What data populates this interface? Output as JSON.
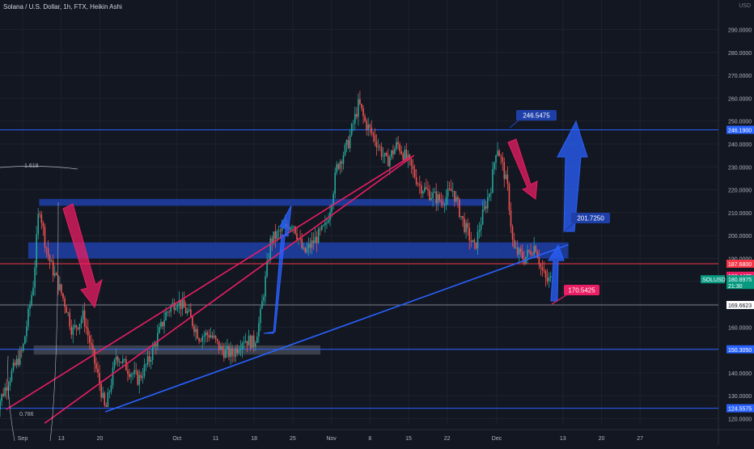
{
  "header": {
    "title": "Solana / U.S. Dollar, 1h, FTX, Heikin Ashi",
    "currency": "USD"
  },
  "colors": {
    "background": "#131722",
    "axis_text": "#b2b5be",
    "up_candle": "#26a69a",
    "down_candle": "#ef5350",
    "resistance_line": "#2962ff",
    "red_line": "#f23645",
    "red_trend": "#e91e63",
    "blue_zone": "#1e3fa8",
    "gray_zone": "#5d606b",
    "current_price_tag": "#089981",
    "red_price_tag": "#f23645"
  },
  "chart_data": {
    "type": "candlestick",
    "title": "Solana / U.S. Dollar, 1h, FTX, Heikin Ashi",
    "xlabel": "",
    "ylabel": "",
    "ylim": [
      118,
      301
    ],
    "y_ticks": [
      120,
      130,
      140,
      150,
      160,
      170,
      180,
      190,
      200,
      210,
      220,
      230,
      240,
      250,
      260,
      270,
      280,
      290
    ],
    "y_tick_labels": [
      "120.0000",
      "130.0000",
      "140.0000",
      "150.0000",
      "160.0000",
      "170.0000",
      "180.0000",
      "190.0000",
      "200.0000",
      "210.0000",
      "220.0000",
      "230.0000",
      "240.0000",
      "250.0000",
      "260.0000",
      "270.0000",
      "280.0000",
      "290.0000"
    ],
    "x_tick_labels": [
      "Sep",
      "13",
      "20",
      "Oct",
      "11",
      "18",
      "25",
      "Nov",
      "8",
      "15",
      "22",
      "Dec",
      "13",
      "20",
      "27"
    ],
    "x_tick_dates": [
      "2021-09-06",
      "2021-09-13",
      "2021-09-20",
      "2021-10-04",
      "2021-10-11",
      "2021-10-18",
      "2021-10-25",
      "2021-11-01",
      "2021-11-08",
      "2021-11-15",
      "2021-11-22",
      "2021-12-01",
      "2021-12-13",
      "2021-12-20",
      "2021-12-27"
    ],
    "price_path": [
      [
        "2021-09-01",
        123
      ],
      [
        "2021-09-04",
        140
      ],
      [
        "2021-09-06",
        150
      ],
      [
        "2021-09-08",
        180
      ],
      [
        "2021-09-09",
        214
      ],
      [
        "2021-09-10",
        198
      ],
      [
        "2021-09-11",
        188
      ],
      [
        "2021-09-13",
        175
      ],
      [
        "2021-09-14",
        168
      ],
      [
        "2021-09-15",
        158
      ],
      [
        "2021-09-17",
        165
      ],
      [
        "2021-09-19",
        145
      ],
      [
        "2021-09-20",
        135
      ],
      [
        "2021-09-21",
        123
      ],
      [
        "2021-09-23",
        148
      ],
      [
        "2021-09-25",
        142
      ],
      [
        "2021-09-27",
        137
      ],
      [
        "2021-09-29",
        146
      ],
      [
        "2021-10-02",
        166
      ],
      [
        "2021-10-04",
        172
      ],
      [
        "2021-10-06",
        166
      ],
      [
        "2021-10-08",
        156
      ],
      [
        "2021-10-10",
        157
      ],
      [
        "2021-10-12",
        150
      ],
      [
        "2021-10-14",
        148
      ],
      [
        "2021-10-16",
        155
      ],
      [
        "2021-10-18",
        153
      ],
      [
        "2021-10-19",
        163
      ],
      [
        "2021-10-20",
        180
      ],
      [
        "2021-10-21",
        198
      ],
      [
        "2021-10-23",
        202
      ],
      [
        "2021-10-25",
        206
      ],
      [
        "2021-10-27",
        192
      ],
      [
        "2021-10-29",
        198
      ],
      [
        "2021-10-31",
        204
      ],
      [
        "2021-11-01",
        215
      ],
      [
        "2021-11-02",
        230
      ],
      [
        "2021-11-04",
        240
      ],
      [
        "2021-11-06",
        258
      ],
      [
        "2021-11-07",
        250
      ],
      [
        "2021-11-09",
        242
      ],
      [
        "2021-11-11",
        232
      ],
      [
        "2021-11-13",
        240
      ],
      [
        "2021-11-15",
        232
      ],
      [
        "2021-11-17",
        222
      ],
      [
        "2021-11-19",
        218
      ],
      [
        "2021-11-21",
        215
      ],
      [
        "2021-11-23",
        220
      ],
      [
        "2021-11-25",
        205
      ],
      [
        "2021-11-27",
        194
      ],
      [
        "2021-11-28",
        205
      ],
      [
        "2021-11-30",
        222
      ],
      [
        "2021-12-01",
        240
      ],
      [
        "2021-12-02",
        231
      ],
      [
        "2021-12-03",
        220
      ],
      [
        "2021-12-04",
        194
      ],
      [
        "2021-12-06",
        190
      ],
      [
        "2021-12-08",
        196
      ],
      [
        "2021-12-09",
        186
      ],
      [
        "2021-12-10",
        180
      ],
      [
        "2021-12-11",
        181
      ]
    ],
    "horizontal_lines": [
      {
        "price": 246.19,
        "label": "246.1900",
        "color": "#2962ff"
      },
      {
        "price": 187.68,
        "label": "187.6800",
        "color": "#f23645"
      },
      {
        "price": 169.6623,
        "label": "169.6623",
        "color": "#787b86"
      },
      {
        "price": 150.305,
        "label": "150.3050",
        "color": "#2962ff"
      },
      {
        "price": 124.5575,
        "label": "124.5575",
        "color": "#2962ff"
      }
    ],
    "current_price": {
      "price": 180.8975,
      "label": "180.8975",
      "symbol": "SOLUSD",
      "countdown": "21:30",
      "secondary_label": "182.4475"
    },
    "zones": [
      {
        "name": "upper-resistance-zone",
        "from": "2021-09-09",
        "to": "2021-11-29",
        "top": 216,
        "bottom": 213,
        "color": "#1e3fa8"
      },
      {
        "name": "middle-resistance-zone",
        "from": "2021-09-07",
        "to": "2021-12-14",
        "top": 197,
        "bottom": 190,
        "color": "#1e3fa8"
      },
      {
        "name": "support-zone",
        "from": "2021-09-08",
        "to": "2021-10-30",
        "top": 152,
        "bottom": 148,
        "color": "#5d606b"
      }
    ],
    "trendlines": [
      {
        "name": "blue-rising-trendline",
        "from": [
          "2021-09-21",
          123
        ],
        "to": [
          "2021-12-14",
          196
        ],
        "color": "#2962ff"
      },
      {
        "name": "red-upper-trendline",
        "from": [
          "2021-09-03",
          124
        ],
        "to": [
          "2021-11-15",
          234
        ],
        "color": "#e91e63"
      },
      {
        "name": "red-lower-trendline",
        "from": [
          "2021-09-10",
          118
        ],
        "to": [
          "2021-11-16",
          235
        ],
        "color": "#e91e63"
      }
    ],
    "callouts": [
      {
        "name": "callout-246",
        "label": "246.5475",
        "color": "#1e3fa8"
      },
      {
        "name": "callout-201",
        "label": "201.7250",
        "color": "#1e3fa8"
      },
      {
        "name": "callout-170",
        "label": "170.5425",
        "color": "#e91e63"
      }
    ],
    "fib_labels": [
      "1.618",
      "0.786"
    ]
  }
}
